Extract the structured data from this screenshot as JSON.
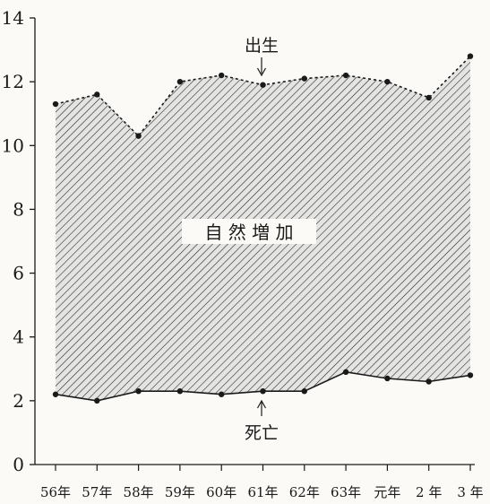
{
  "chart_data": {
    "type": "area",
    "title": "",
    "xlabel": "",
    "ylabel": "",
    "categories": [
      "56年",
      "57年",
      "58年",
      "59年",
      "60年",
      "61年",
      "62年",
      "63年",
      "元年",
      "2 年",
      "3 年"
    ],
    "ylim": [
      0,
      14
    ],
    "yticks": [
      0,
      2,
      4,
      6,
      8,
      10,
      12,
      14
    ],
    "grid": false,
    "series": [
      {
        "name": "出生",
        "values": [
          11.3,
          11.6,
          10.3,
          12.0,
          12.2,
          11.9,
          12.1,
          12.2,
          12.0,
          11.5,
          12.8
        ]
      },
      {
        "name": "死亡",
        "values": [
          2.2,
          2.0,
          2.3,
          2.3,
          2.2,
          2.3,
          2.3,
          2.9,
          2.7,
          2.6,
          2.8
        ]
      }
    ],
    "fill_label": "自 然 増 加",
    "annotations": [
      {
        "text": "出生",
        "arrow": "down"
      },
      {
        "text": "死亡",
        "arrow": "up"
      }
    ],
    "colors": {
      "ink": "#1a1a1a",
      "hatch": "#2b2b2b",
      "paper": "#fbfaf6",
      "fill_base": "#e4e4e2"
    }
  }
}
